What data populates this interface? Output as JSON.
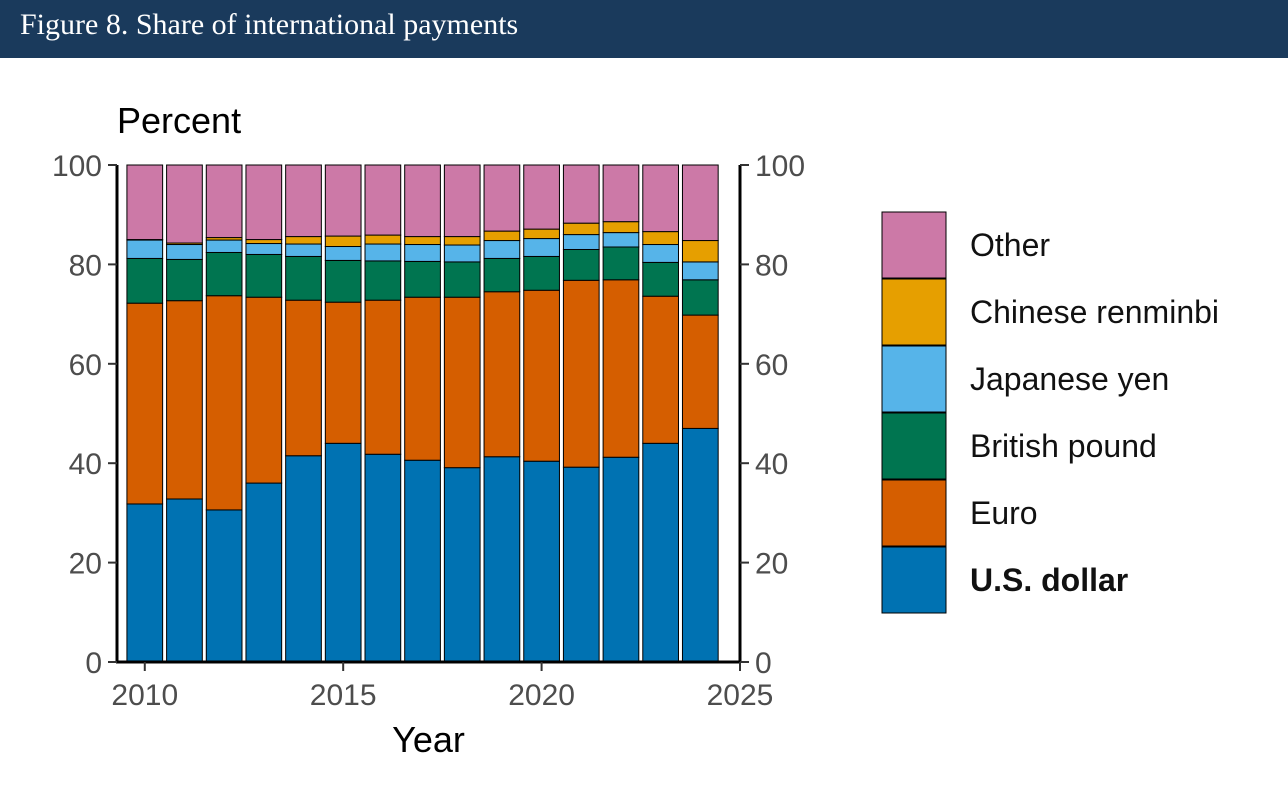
{
  "header": {
    "title": "Figure 8. Share of international payments"
  },
  "chart_data": {
    "type": "bar",
    "stacked": true,
    "title": "",
    "ylabel": "Percent",
    "xlabel": "Year",
    "ylim": [
      0,
      100
    ],
    "xlim": [
      2009.3,
      2025
    ],
    "yticks": [
      0,
      20,
      40,
      60,
      80,
      100
    ],
    "xticks": [
      2010,
      2015,
      2020,
      2025
    ],
    "secondary_y_axis": true,
    "grid": false,
    "legend_position": "right",
    "categories": [
      2010,
      2011,
      2012,
      2013,
      2014,
      2015,
      2016,
      2017,
      2018,
      2019,
      2020,
      2021,
      2022,
      2023,
      2024
    ],
    "series": [
      {
        "name": "U.S. dollar",
        "color": "#0072B2",
        "bold": true,
        "values": [
          31.8,
          32.8,
          30.6,
          36.0,
          41.5,
          44.0,
          41.8,
          40.6,
          39.1,
          41.3,
          40.4,
          39.2,
          41.2,
          44.0,
          47.0
        ]
      },
      {
        "name": "Euro",
        "color": "#D55E00",
        "values": [
          40.4,
          39.9,
          43.1,
          37.4,
          31.3,
          28.4,
          31.0,
          32.8,
          34.3,
          33.2,
          34.4,
          37.6,
          35.7,
          29.6,
          22.8
        ]
      },
      {
        "name": "British pound",
        "color": "#007550",
        "values": [
          9.0,
          8.3,
          8.7,
          8.6,
          8.8,
          8.4,
          7.9,
          7.2,
          7.1,
          6.7,
          6.8,
          6.2,
          6.6,
          6.8,
          7.1
        ]
      },
      {
        "name": "Japanese yen",
        "color": "#56B4E9",
        "values": [
          3.7,
          3.0,
          2.5,
          2.2,
          2.5,
          2.8,
          3.4,
          3.4,
          3.4,
          3.6,
          3.6,
          3.0,
          2.9,
          3.6,
          3.6
        ]
      },
      {
        "name": "Chinese renminbi",
        "color": "#E69F00",
        "values": [
          0.1,
          0.3,
          0.5,
          0.8,
          1.5,
          2.1,
          1.8,
          1.6,
          1.7,
          1.9,
          1.9,
          2.3,
          2.2,
          2.6,
          4.3
        ]
      },
      {
        "name": "Other",
        "color": "#CC79A7",
        "values": [
          15.0,
          15.7,
          14.6,
          15.0,
          14.4,
          14.3,
          14.1,
          14.4,
          14.4,
          13.3,
          12.9,
          11.7,
          11.4,
          13.4,
          15.2
        ]
      }
    ]
  }
}
